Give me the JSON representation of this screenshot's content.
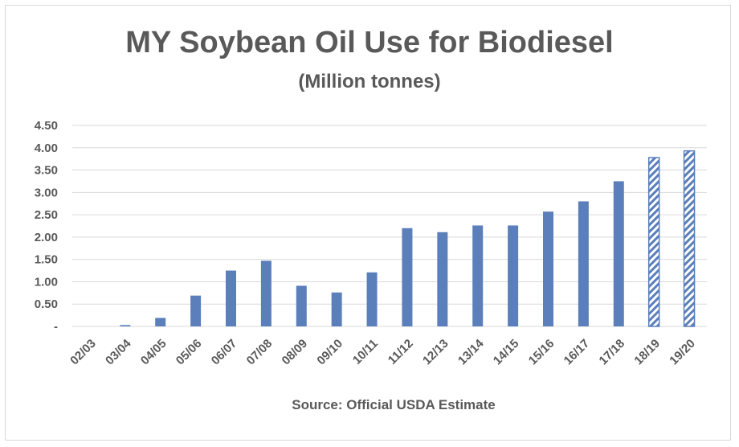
{
  "chart_data": {
    "type": "bar",
    "title": "MY Soybean Oil Use for Biodiesel",
    "subtitle": "(Million tonnes)",
    "source": "Source: Official USDA Estimate",
    "categories": [
      "02/03",
      "03/04",
      "04/05",
      "05/06",
      "06/07",
      "07/08",
      "08/09",
      "09/10",
      "10/11",
      "11/12",
      "12/13",
      "13/14",
      "14/15",
      "15/16",
      "16/17",
      "17/18",
      "18/19",
      "19/20"
    ],
    "values": [
      0.0,
      0.03,
      0.19,
      0.69,
      1.25,
      1.47,
      0.91,
      0.76,
      1.21,
      2.2,
      2.11,
      2.26,
      2.26,
      2.57,
      2.8,
      3.25,
      3.78,
      3.93
    ],
    "estimate_flags": [
      false,
      false,
      false,
      false,
      false,
      false,
      false,
      false,
      false,
      false,
      false,
      false,
      false,
      false,
      false,
      false,
      true,
      true
    ],
    "yticks": [
      "-",
      "0.50",
      "1.00",
      "1.50",
      "2.00",
      "2.50",
      "3.00",
      "3.50",
      "4.00",
      "4.50"
    ],
    "ylim": [
      0,
      4.5
    ],
    "grid": true,
    "colors": {
      "bar": "#5b7fbb",
      "grid": "#d9d9d9",
      "text": "#595959"
    }
  }
}
